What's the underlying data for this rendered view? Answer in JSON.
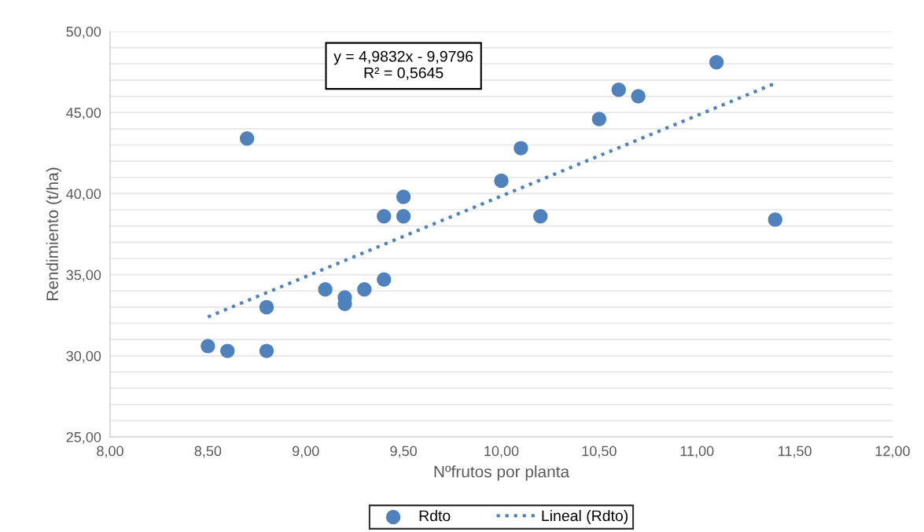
{
  "chart_data": {
    "type": "scatter",
    "xlabel": "Nºfrutos por planta",
    "ylabel": "Rendimiento (t/ha)",
    "annotations": [
      "y = 4,9832x - 9,9796\nR² = 0,5645"
    ],
    "series": [
      {
        "name": "Rdto",
        "color": "#4f81bd",
        "marker": "circle",
        "x": [
          8.5,
          8.6,
          8.7,
          8.8,
          8.8,
          9.1,
          9.2,
          9.2,
          9.3,
          9.4,
          9.4,
          9.5,
          9.5,
          10.0,
          10.1,
          10.2,
          10.5,
          10.6,
          10.7,
          11.1,
          11.4
        ],
        "values": [
          30.6,
          30.3,
          43.4,
          33.0,
          30.3,
          34.1,
          33.6,
          33.2,
          34.1,
          38.6,
          34.7,
          39.8,
          38.6,
          40.8,
          42.8,
          38.6,
          44.6,
          46.4,
          46.0,
          48.1,
          38.4
        ]
      },
      {
        "name": "Lineal (Rdto)",
        "type": "line",
        "color": "#4f81bd",
        "line_style": "dotted",
        "marker": "none",
        "x": [
          8.5,
          11.4
        ],
        "values": [
          32.4,
          46.8
        ]
      }
    ],
    "xlim": [
      8,
      12
    ],
    "xticks": [
      {
        "value": 8,
        "label": "8,00"
      },
      {
        "value": 8.5,
        "label": "8,50"
      },
      {
        "value": 9,
        "label": "9,00"
      },
      {
        "value": 9.5,
        "label": "9,50"
      },
      {
        "value": 10,
        "label": "10,00"
      },
      {
        "value": 10.5,
        "label": "10,50"
      },
      {
        "value": 11,
        "label": "11,00"
      },
      {
        "value": 11.5,
        "label": "11,50"
      },
      {
        "value": 12,
        "label": "12,00"
      }
    ],
    "ylim": [
      25,
      50
    ],
    "yticks": [
      {
        "value": 25,
        "label": "25,00"
      },
      {
        "value": 26,
        "label": null
      },
      {
        "value": 27,
        "label": null
      },
      {
        "value": 28,
        "label": null
      },
      {
        "value": 29,
        "label": null
      },
      {
        "value": 30,
        "label": "30,00"
      },
      {
        "value": 31,
        "label": null
      },
      {
        "value": 32,
        "label": null
      },
      {
        "value": 33,
        "label": null
      },
      {
        "value": 34,
        "label": null
      },
      {
        "value": 35,
        "label": "35,00"
      },
      {
        "value": 36,
        "label": null
      },
      {
        "value": 37,
        "label": null
      },
      {
        "value": 38,
        "label": null
      },
      {
        "value": 39,
        "label": null
      },
      {
        "value": 40,
        "label": "40,00"
      },
      {
        "value": 41,
        "label": null
      },
      {
        "value": 42,
        "label": null
      },
      {
        "value": 43,
        "label": null
      },
      {
        "value": 44,
        "label": null
      },
      {
        "value": 45,
        "label": "45,00"
      },
      {
        "value": 46,
        "label": null
      },
      {
        "value": 47,
        "label": null
      },
      {
        "value": 48,
        "label": null
      },
      {
        "value": 49,
        "label": null
      },
      {
        "value": 50,
        "label": "50,00"
      }
    ],
    "grid": "y",
    "legend": "bottom"
  }
}
